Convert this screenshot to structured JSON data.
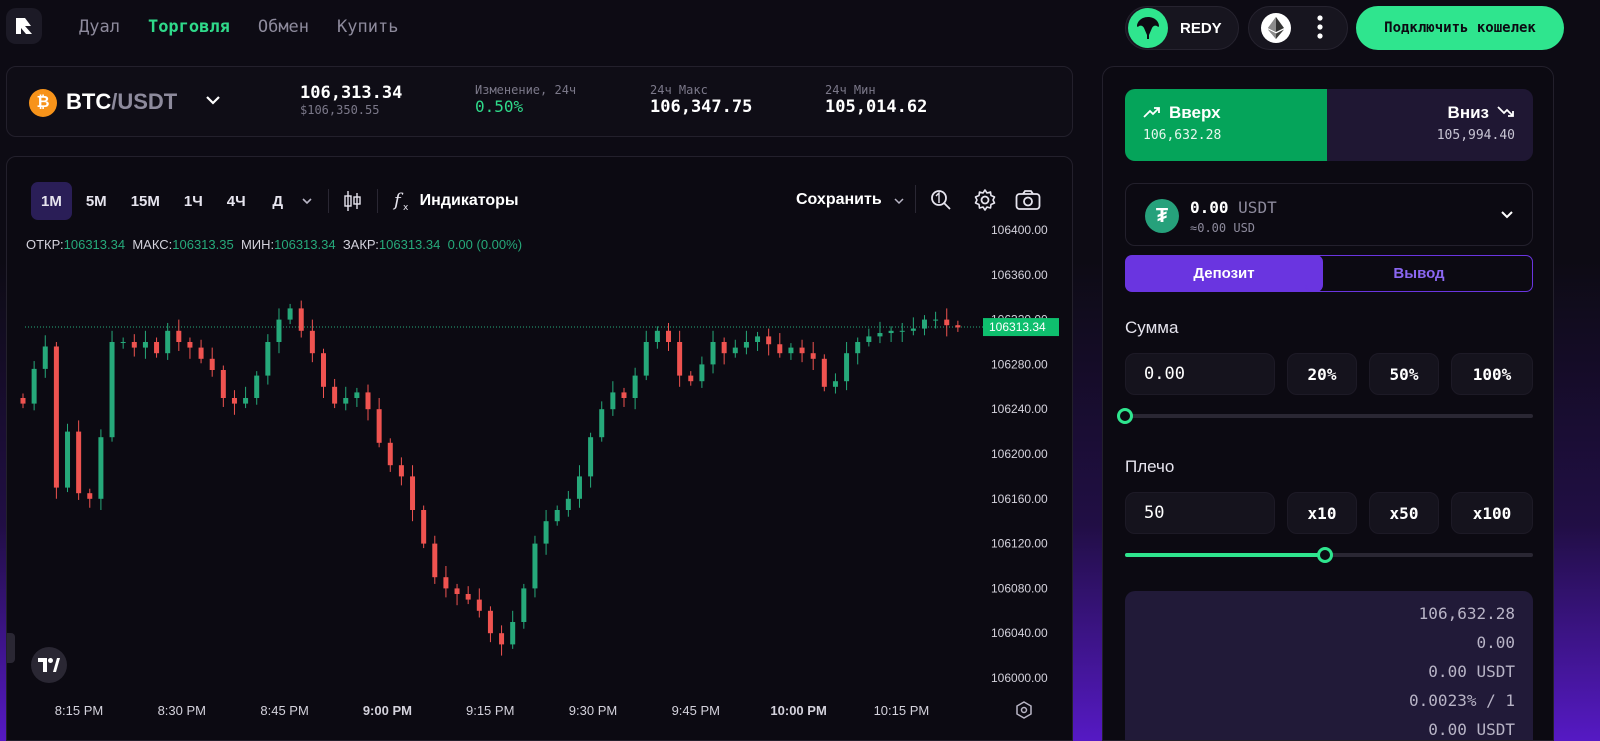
{
  "nav": {
    "logo": "R",
    "items": [
      {
        "label": "Дуал",
        "active": false
      },
      {
        "label": "Торговля",
        "active": true
      },
      {
        "label": "Обмен",
        "active": false
      },
      {
        "label": "Купить",
        "active": false
      }
    ]
  },
  "header": {
    "token_name": "REDY",
    "connect_label": "Подключить кошелек",
    "network_icon": "ethereum-icon",
    "more_icon": "more-vertical-icon"
  },
  "ticker": {
    "base": "BTC",
    "separator": "/",
    "quote": "USDT",
    "coin_symbol": "₿",
    "price": "106,313.34",
    "price_usd": "$106,350.55",
    "change_label": "Изменение, 24ч",
    "change_value": "0.50%",
    "high_label": "24ч Макс",
    "high_value": "106,347.75",
    "low_label": "24ч Мин",
    "low_value": "105,014.62"
  },
  "chart_toolbar": {
    "timeframes": [
      {
        "label": "1М",
        "active": true
      },
      {
        "label": "5М",
        "active": false
      },
      {
        "label": "15М",
        "active": false
      },
      {
        "label": "1Ч",
        "active": false
      },
      {
        "label": "4Ч",
        "active": false
      },
      {
        "label": "Д",
        "active": false
      }
    ],
    "indicators_label": "Индикаторы",
    "save_label": "Сохранить"
  },
  "ohlc": {
    "open_label": "ОТКР:",
    "open": "106313.34",
    "high_label": "МАКС:",
    "high": "106313.35",
    "low_label": "МИН:",
    "low": "106313.34",
    "close_label": "ЗАКР:",
    "close": "106313.34",
    "change": "0.00 (0.00%)"
  },
  "chart_data": {
    "type": "candlestick",
    "y_ticks": [
      106000,
      106040,
      106080,
      106120,
      106160,
      106200,
      106240,
      106280,
      106320,
      106360,
      106400
    ],
    "ylim": [
      106000,
      106400
    ],
    "x_ticks": [
      "8:15 PM",
      "8:30 PM",
      "8:45 PM",
      "9:00 PM",
      "9:15 PM",
      "9:30 PM",
      "9:45 PM",
      "10:00 PM",
      "10:15 PM"
    ],
    "bold_x_ticks": [
      "9:00 PM",
      "10:00 PM"
    ],
    "last_price": 106313.34,
    "last_price_label": "106313.34",
    "up_color": "#26a97a",
    "down_color": "#ef5350",
    "grid": false
  },
  "trade": {
    "up_label": "Вверх",
    "up_price": "106,632.28",
    "down_label": "Вниз",
    "down_price": "105,994.40",
    "balance_amount": "0.00",
    "balance_currency": "USDT",
    "balance_sub": "≈0.00 USD",
    "deposit_label": "Депозит",
    "withdraw_label": "Вывод",
    "amount_label": "Сумма",
    "amount_value": "0.00",
    "amount_presets": [
      "20%",
      "50%",
      "100%"
    ],
    "amount_slider": 0,
    "leverage_label": "Плечо",
    "leverage_value": "50",
    "leverage_presets": [
      "x10",
      "x50",
      "x100"
    ],
    "leverage_slider": 0.49,
    "summary": [
      "106,632.28",
      "0.00",
      "0.00 USDT",
      "0.0023% / 1",
      "0.00 USDT"
    ]
  }
}
